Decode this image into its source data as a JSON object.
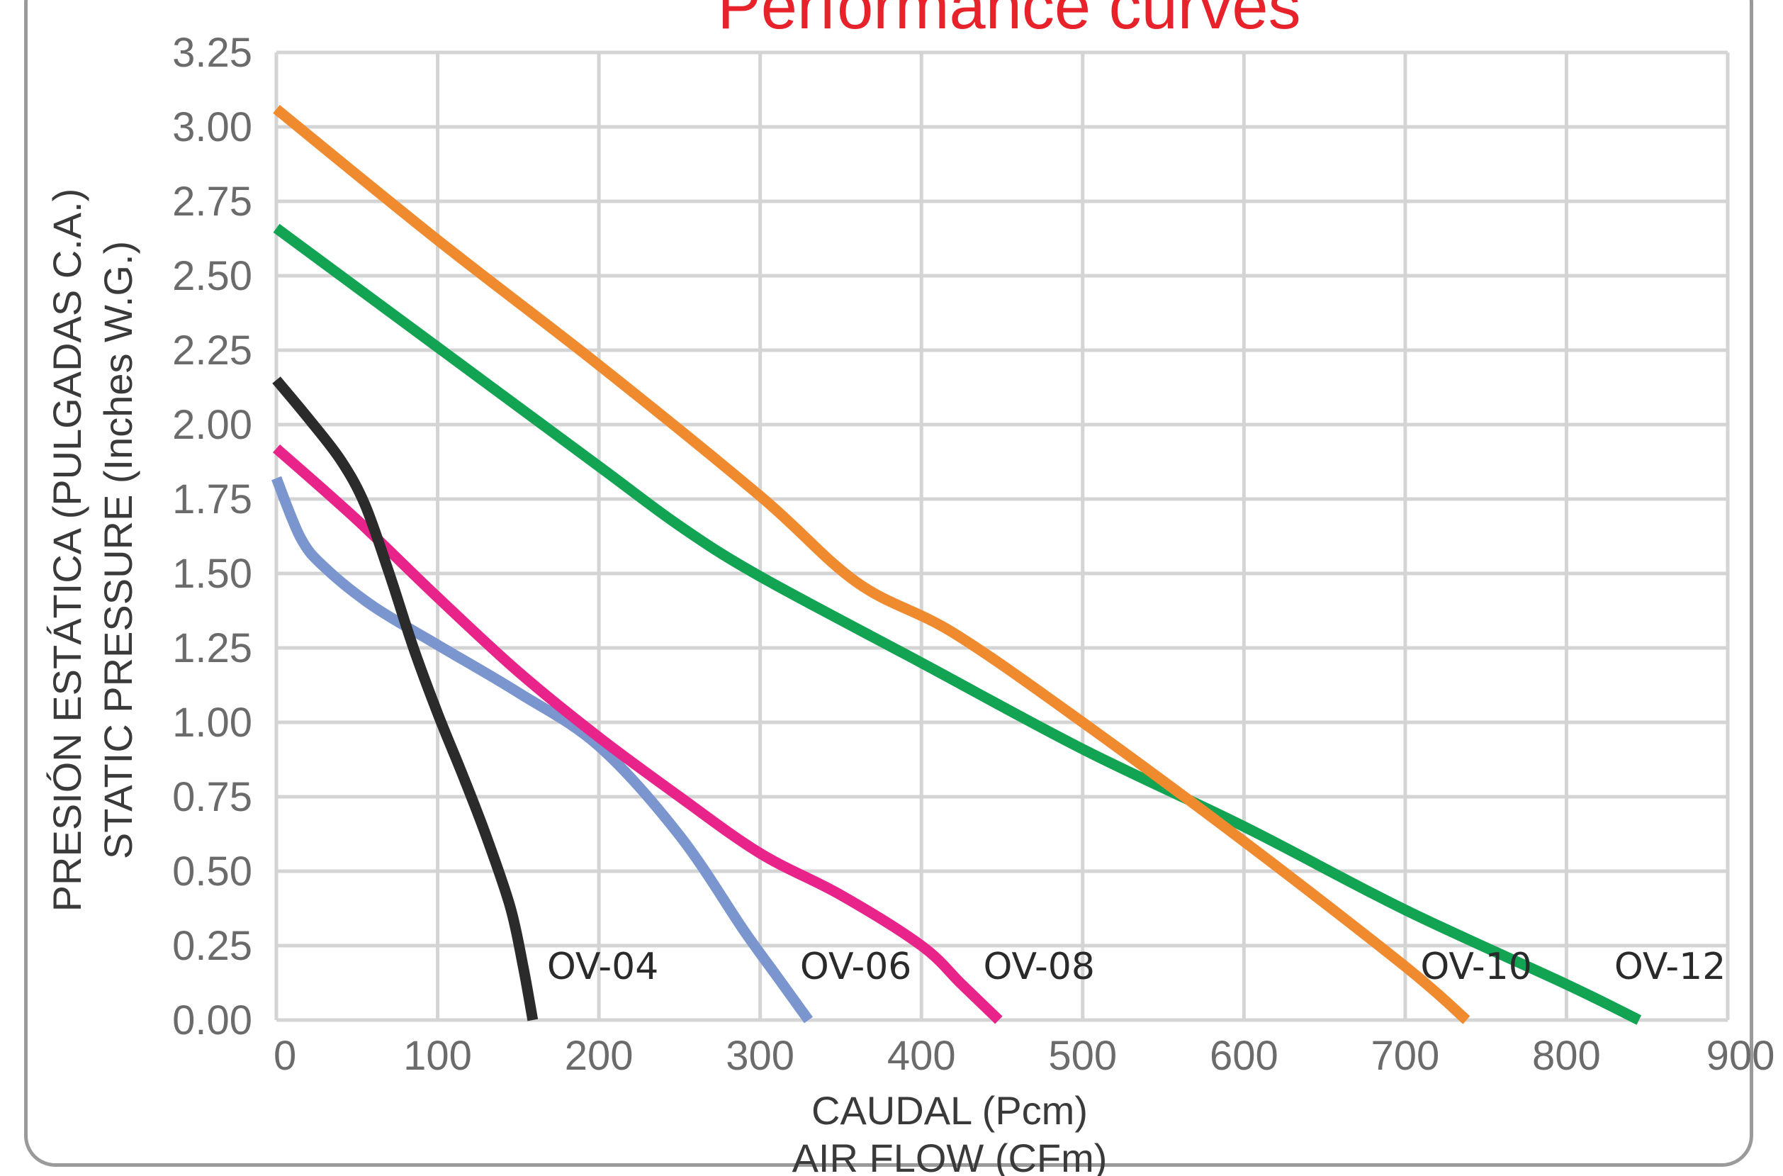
{
  "chart_data": {
    "type": "line",
    "title": "Performance curves",
    "xlabel": [
      "CAUDAL (Pcm)",
      "AIR FLOW (CFm)"
    ],
    "ylabel": [
      "PRESIÓN ESTÁTICA (PULGADAS C.A.)",
      "STATIC PRESSURE (Inches W.G.)"
    ],
    "xlim": [
      0,
      900
    ],
    "ylim": [
      0,
      3.25
    ],
    "x_ticks": [
      "0",
      "100",
      "200",
      "300",
      "400",
      "500",
      "600",
      "700",
      "800",
      "900"
    ],
    "y_ticks": [
      "0.00",
      "0.25",
      "0.50",
      "0.75",
      "1.00",
      "1.25",
      "1.50",
      "1.75",
      "2.00",
      "2.25",
      "2.50",
      "2.75",
      "3.00",
      "3.25"
    ],
    "grid": true,
    "series": [
      {
        "name": "OV-04",
        "color": "#2b2b2b",
        "points": [
          [
            0,
            2.15
          ],
          [
            20,
            2.02
          ],
          [
            40,
            1.88
          ],
          [
            55,
            1.73
          ],
          [
            70,
            1.5
          ],
          [
            85,
            1.25
          ],
          [
            100,
            1.03
          ],
          [
            115,
            0.83
          ],
          [
            130,
            0.62
          ],
          [
            145,
            0.38
          ],
          [
            153,
            0.18
          ],
          [
            159,
            0.0
          ]
        ]
      },
      {
        "name": "OV-06",
        "color": "#7b96cf",
        "points": [
          [
            0,
            1.82
          ],
          [
            15,
            1.62
          ],
          [
            30,
            1.52
          ],
          [
            60,
            1.39
          ],
          [
            100,
            1.26
          ],
          [
            150,
            1.1
          ],
          [
            200,
            0.92
          ],
          [
            250,
            0.62
          ],
          [
            290,
            0.3
          ],
          [
            310,
            0.15
          ],
          [
            330,
            0.0
          ]
        ]
      },
      {
        "name": "OV-08",
        "color": "#e8238a",
        "points": [
          [
            0,
            1.92
          ],
          [
            50,
            1.68
          ],
          [
            100,
            1.42
          ],
          [
            150,
            1.17
          ],
          [
            200,
            0.95
          ],
          [
            250,
            0.75
          ],
          [
            300,
            0.56
          ],
          [
            350,
            0.42
          ],
          [
            400,
            0.25
          ],
          [
            425,
            0.12
          ],
          [
            448,
            0.0
          ]
        ]
      },
      {
        "name": "OV-10",
        "color": "#f08a2e",
        "points": [
          [
            0,
            3.06
          ],
          [
            100,
            2.62
          ],
          [
            200,
            2.2
          ],
          [
            300,
            1.76
          ],
          [
            360,
            1.47
          ],
          [
            420,
            1.3
          ],
          [
            500,
            1.0
          ],
          [
            600,
            0.6
          ],
          [
            700,
            0.18
          ],
          [
            738,
            0.0
          ]
        ]
      },
      {
        "name": "OV-12",
        "color": "#12a353",
        "points": [
          [
            0,
            2.66
          ],
          [
            100,
            2.26
          ],
          [
            200,
            1.86
          ],
          [
            250,
            1.66
          ],
          [
            300,
            1.49
          ],
          [
            400,
            1.2
          ],
          [
            500,
            0.91
          ],
          [
            600,
            0.65
          ],
          [
            700,
            0.37
          ],
          [
            800,
            0.12
          ],
          [
            845,
            0.0
          ]
        ]
      }
    ]
  }
}
